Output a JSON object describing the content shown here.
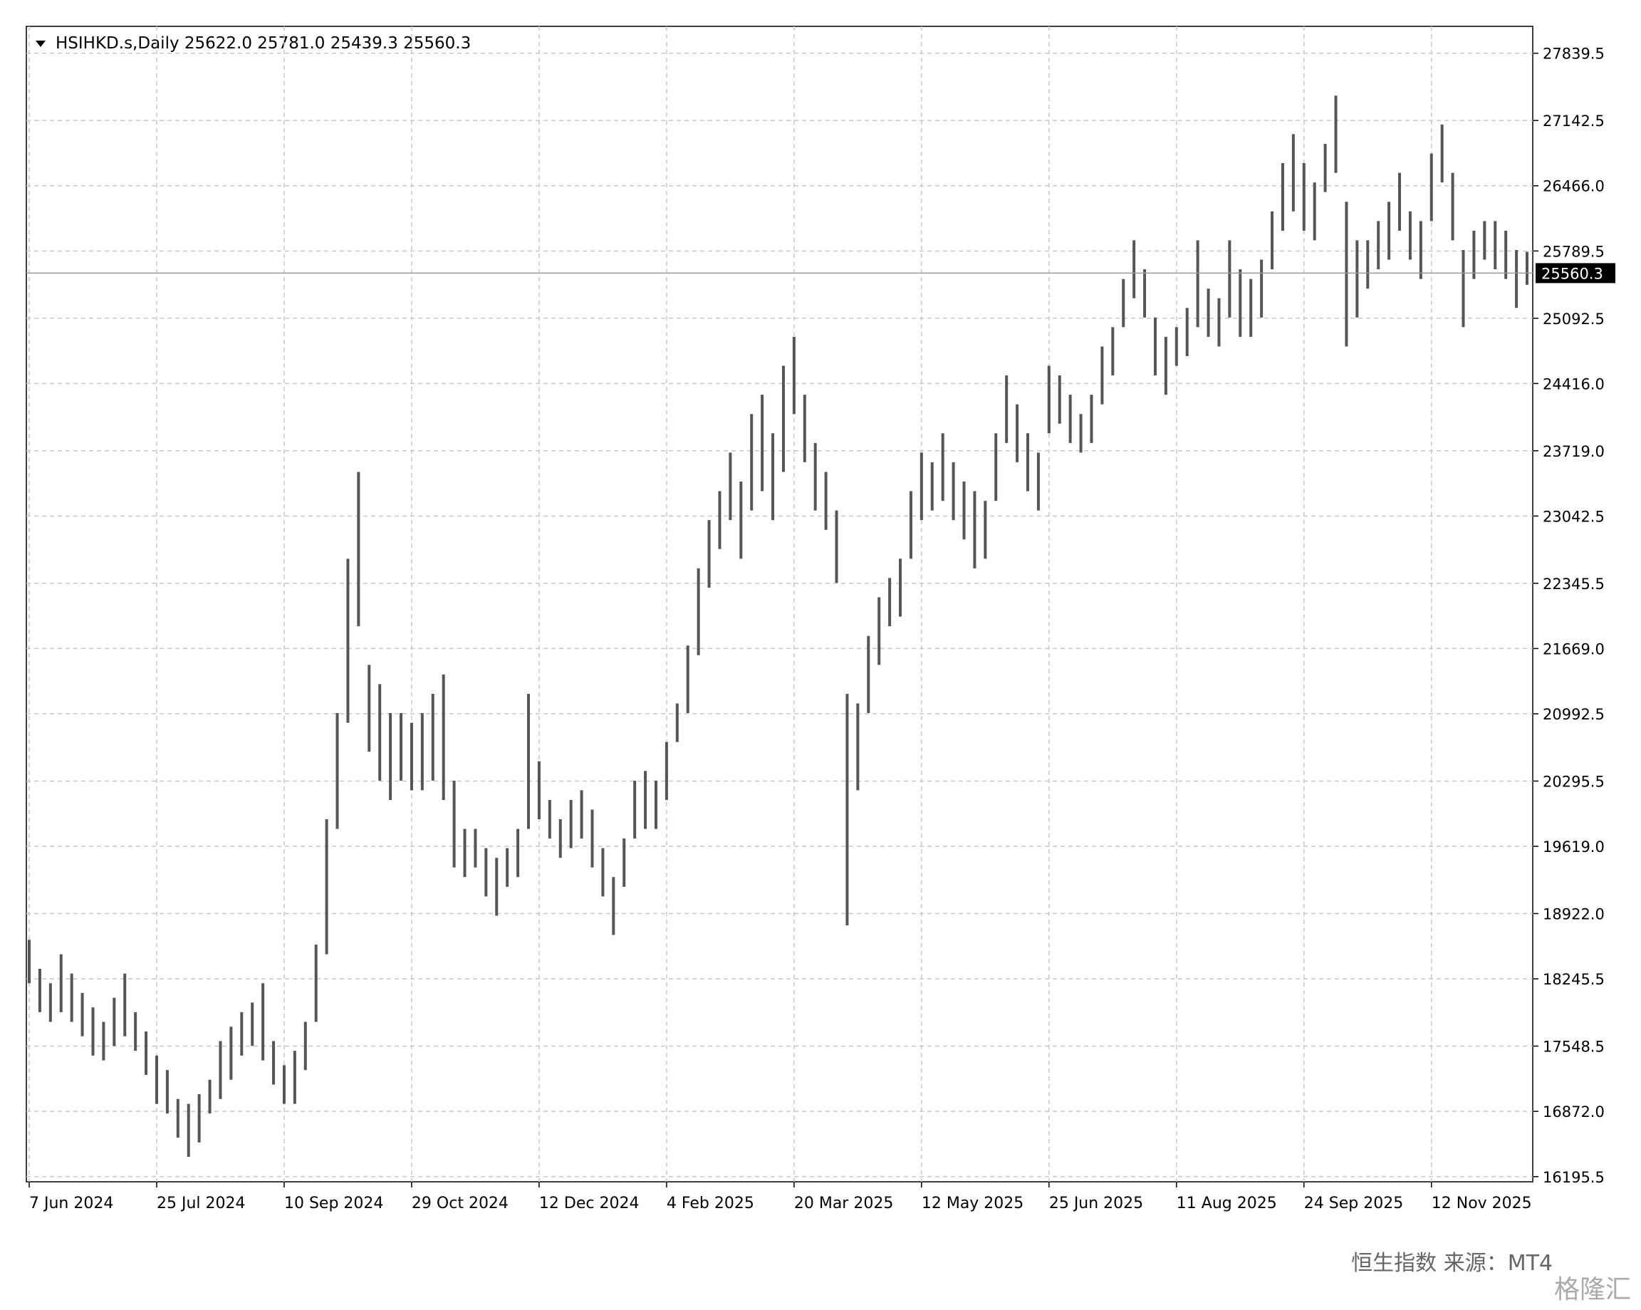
{
  "chart_data": {
    "type": "range-bar",
    "title": "HSIHKD.s,Daily  25622.0 25781.0 25439.3 25560.3",
    "footer": "恒生指数 来源：MT4",
    "watermark": "格隆汇",
    "color": "#555555",
    "grid": true,
    "last_price": 25560.3,
    "ylim": [
      16142,
      28118
    ],
    "yticks": [
      16195.5,
      {
        "value": 16872,
        "label": "16872.0"
      },
      17548.5,
      18245.5,
      {
        "value": 18922,
        "label": "18922.0"
      },
      {
        "value": 19619,
        "label": "19619.0"
      },
      20295.5,
      20992.5,
      {
        "value": 21669,
        "label": "21669.0"
      },
      22345.5,
      23042.5,
      {
        "value": 23719,
        "label": "23719.0"
      },
      {
        "value": 24416,
        "label": "24416.0"
      },
      25092.5,
      25789.5,
      {
        "value": 26466,
        "label": "26466.0"
      },
      27142.5,
      27839.5
    ],
    "categories": [
      "7 Jun 2024",
      null,
      null,
      null,
      null,
      null,
      null,
      null,
      null,
      null,
      null,
      null,
      "25 Jul 2024",
      null,
      null,
      null,
      null,
      null,
      null,
      null,
      null,
      null,
      null,
      null,
      "10 Sep 2024",
      null,
      null,
      null,
      null,
      null,
      null,
      null,
      null,
      null,
      null,
      null,
      "29 Oct 2024",
      null,
      null,
      null,
      null,
      null,
      null,
      null,
      null,
      null,
      null,
      null,
      "12 Dec 2024",
      null,
      null,
      null,
      null,
      null,
      null,
      null,
      null,
      null,
      null,
      null,
      "4 Feb 2025",
      null,
      null,
      null,
      null,
      null,
      null,
      null,
      null,
      null,
      null,
      null,
      "20 Mar 2025",
      null,
      null,
      null,
      null,
      null,
      null,
      null,
      null,
      null,
      null,
      null,
      "12 May 2025",
      null,
      null,
      null,
      null,
      null,
      null,
      null,
      null,
      null,
      null,
      null,
      "25 Jun 2025",
      null,
      null,
      null,
      null,
      null,
      null,
      null,
      null,
      null,
      null,
      null,
      "11 Aug 2025",
      null,
      null,
      null,
      null,
      null,
      null,
      null,
      null,
      null,
      null,
      null,
      "24 Sep 2025",
      null,
      null,
      null,
      null,
      null,
      null,
      null,
      null,
      null,
      null,
      null,
      "12 Nov 2025",
      null,
      null,
      null,
      null,
      null,
      null,
      null,
      null,
      null
    ],
    "low": [
      18200,
      17900,
      17800,
      17900,
      17800,
      17650,
      17450,
      17400,
      17550,
      17650,
      17500,
      17250,
      16950,
      16850,
      16600,
      16400,
      16550,
      16850,
      17000,
      17200,
      17450,
      17550,
      17400,
      17150,
      16950,
      16950,
      17300,
      17800,
      18500,
      19800,
      20900,
      21900,
      20600,
      20300,
      20100,
      20300,
      20200,
      20200,
      20300,
      20100,
      19400,
      19300,
      19400,
      19100,
      18900,
      19200,
      19300,
      19800,
      19900,
      19700,
      19500,
      19600,
      19700,
      19400,
      19100,
      18700,
      19200,
      19700,
      19800,
      19800,
      20100,
      20700,
      21000,
      21600,
      22300,
      22700,
      23000,
      22600,
      23100,
      23300,
      23000,
      23500,
      24100,
      23600,
      23100,
      22900,
      22350,
      18800,
      20200,
      21000,
      21500,
      21900,
      22000,
      22600,
      23000,
      23100,
      23200,
      23000,
      22800,
      22500,
      22600,
      23200,
      23800,
      23600,
      23300,
      23100,
      23900,
      24000,
      23800,
      23700,
      23800,
      24200,
      24500,
      25000,
      25300,
      25100,
      24500,
      24300,
      24600,
      24700,
      25000,
      24900,
      24800,
      25100,
      24900,
      24900,
      25100,
      25600,
      26000,
      26200,
      26000,
      25900,
      26400,
      26600,
      24800,
      25100,
      25400,
      25600,
      25700,
      26000,
      25700,
      25500,
      26100,
      26500,
      25900,
      25000,
      25500,
      25700,
      25600,
      25500,
      25200,
      25439.3
    ],
    "high": [
      18650,
      18350,
      18200,
      18500,
      18300,
      18100,
      17950,
      17800,
      18050,
      18300,
      17900,
      17700,
      17450,
      17300,
      17000,
      16950,
      17050,
      17200,
      17600,
      17750,
      17900,
      18000,
      18200,
      17600,
      17350,
      17500,
      17800,
      18600,
      19900,
      21000,
      22600,
      23500,
      21500,
      21300,
      21000,
      21000,
      20900,
      21000,
      21200,
      21400,
      20300,
      19800,
      19800,
      19600,
      19500,
      19600,
      19800,
      21200,
      20500,
      20100,
      19900,
      20100,
      20200,
      20000,
      19600,
      19300,
      19700,
      20300,
      20400,
      20300,
      20700,
      21100,
      21700,
      22500,
      23000,
      23300,
      23700,
      23400,
      24100,
      24300,
      23900,
      24600,
      24900,
      24300,
      23800,
      23500,
      23100,
      21200,
      21100,
      21800,
      22200,
      22400,
      22600,
      23300,
      23700,
      23600,
      23900,
      23600,
      23400,
      23300,
      23200,
      23900,
      24500,
      24200,
      23900,
      23700,
      24600,
      24500,
      24300,
      24100,
      24300,
      24800,
      25000,
      25500,
      25900,
      25600,
      25100,
      24900,
      25000,
      25200,
      25900,
      25400,
      25300,
      25900,
      25600,
      25500,
      25700,
      26200,
      26700,
      27000,
      26700,
      26500,
      26900,
      27400,
      26300,
      25900,
      25900,
      26100,
      26300,
      26600,
      26200,
      26100,
      26800,
      27100,
      26600,
      25800,
      26000,
      26100,
      26100,
      26000,
      25800,
      25781
    ]
  }
}
